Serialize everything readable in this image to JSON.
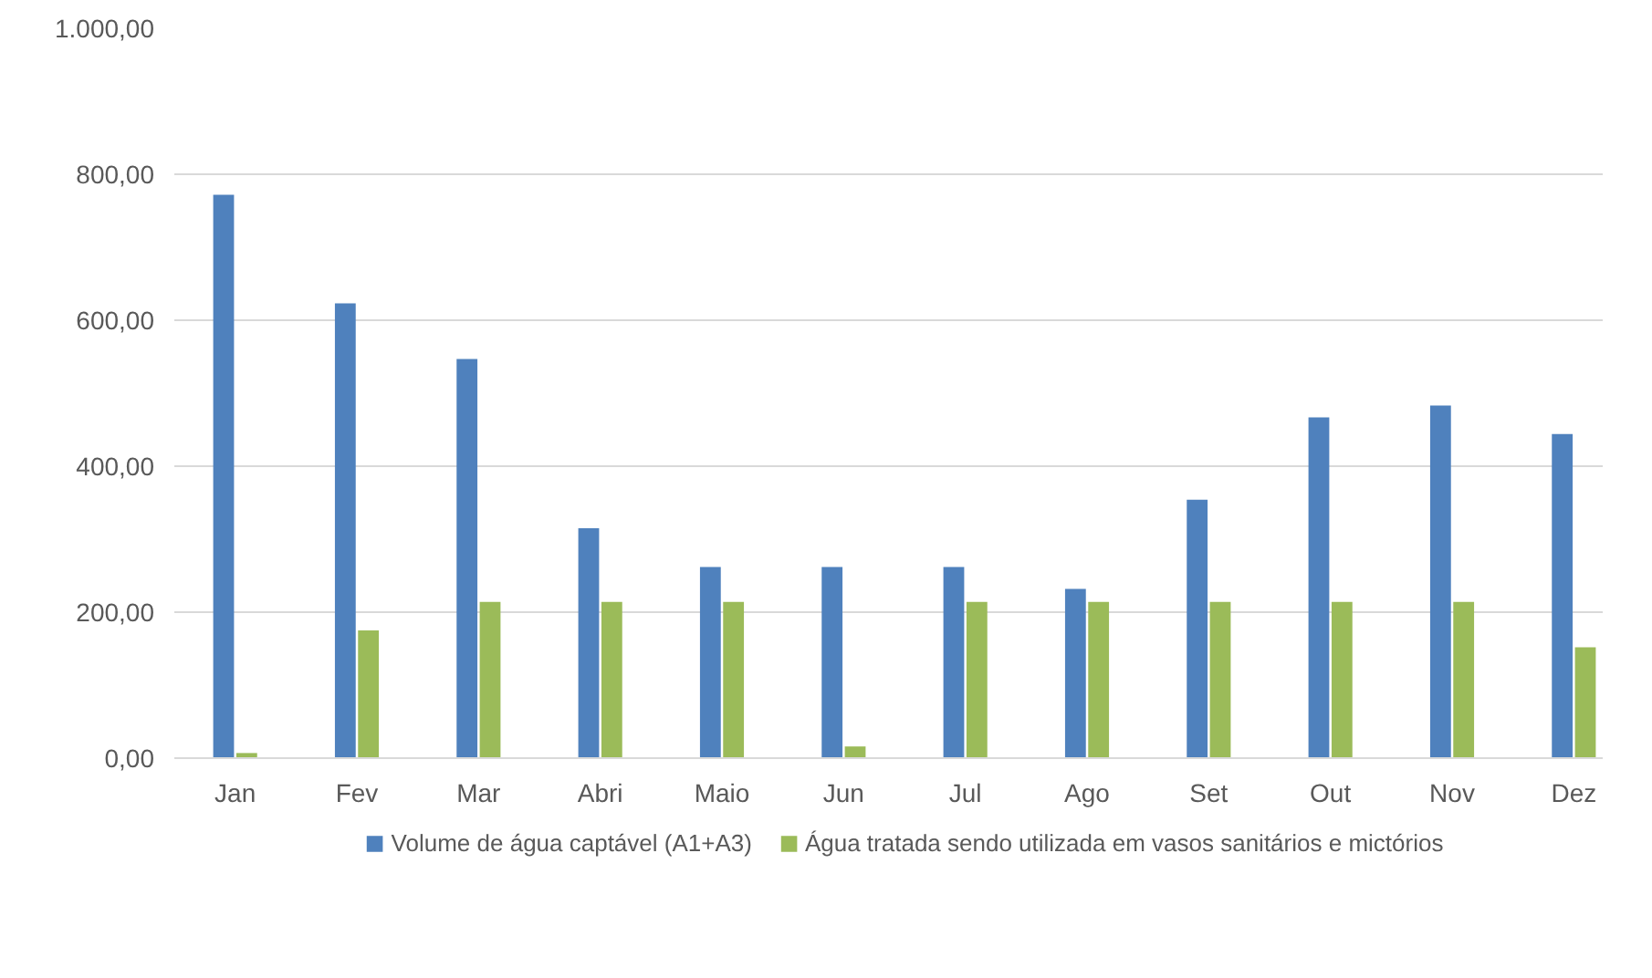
{
  "chart_data": {
    "type": "bar",
    "categories": [
      "Jan",
      "Fev",
      "Mar",
      "Abri",
      "Maio",
      "Jun",
      "Jul",
      "Ago",
      "Set",
      "Out",
      "Nov",
      "Dez"
    ],
    "series": [
      {
        "name": "Volume de água captável (A1+A3)",
        "color": "#4f81bd",
        "values": [
          772,
          623,
          547,
          315,
          262,
          262,
          262,
          232,
          354,
          467,
          483,
          444
        ]
      },
      {
        "name": "Água tratada sendo utilizada em vasos sanitários e mictórios",
        "color": "#9bbb59",
        "values": [
          7,
          175,
          214,
          214,
          214,
          16,
          214,
          214,
          214,
          214,
          214,
          152
        ]
      }
    ],
    "ylim": [
      0,
      1000
    ],
    "yticks": [
      {
        "value": 0,
        "label": "0,00"
      },
      {
        "value": 200,
        "label": "200,00"
      },
      {
        "value": 400,
        "label": "400,00"
      },
      {
        "value": 600,
        "label": "600,00"
      },
      {
        "value": 800,
        "label": "800,00"
      },
      {
        "value": 1000,
        "label": "1.000,00"
      }
    ],
    "grid": "y",
    "legend": "bottom"
  }
}
